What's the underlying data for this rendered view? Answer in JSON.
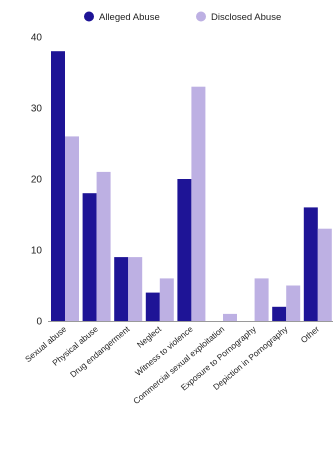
{
  "chart_data": {
    "type": "bar",
    "categories": [
      "Sexual abuse",
      "Physical abuse",
      "Drug endangerment",
      "Neglect",
      "Witness to violence",
      "Commercial sexual exploitation",
      "Exposure to Pornography",
      "Depiction in Pornography",
      "Other"
    ],
    "series": [
      {
        "name": "Alleged Abuse",
        "color": "#1e1496",
        "values": [
          38,
          18,
          9,
          4,
          20,
          0,
          0,
          2,
          16
        ]
      },
      {
        "name": "Disclosed Abuse",
        "color": "#bdb0e3",
        "values": [
          26,
          21,
          9,
          6,
          33,
          1,
          6,
          5,
          13
        ]
      }
    ],
    "ylim": [
      0,
      40
    ],
    "yticks": [
      0,
      10,
      20,
      30,
      40
    ],
    "grid": false,
    "legend_position": "top"
  }
}
